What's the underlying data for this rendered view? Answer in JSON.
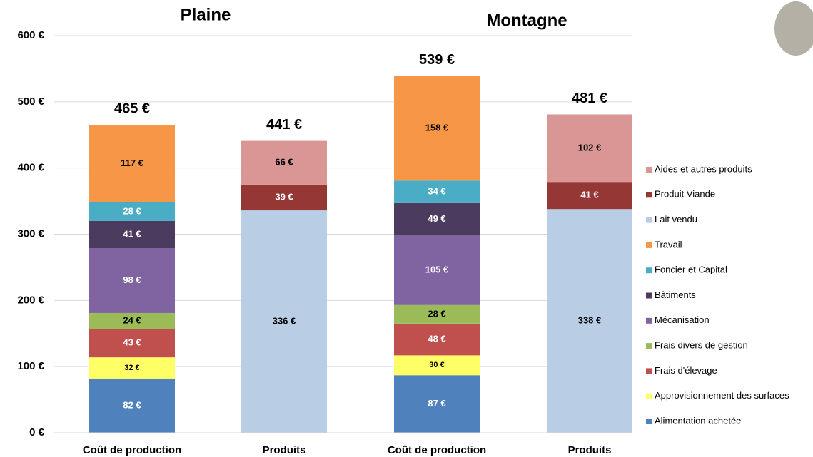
{
  "chart_data": {
    "type": "stacked-bar",
    "groups": [
      "Plaine",
      "Montagne"
    ],
    "categories": [
      "Coût de production",
      "Produits",
      "Coût de production",
      "Produits"
    ],
    "totals": [
      465,
      441,
      539,
      481
    ],
    "total_labels": [
      "465 €",
      "441 €",
      "539 €",
      "481 €"
    ],
    "ylim": [
      0,
      600
    ],
    "yticks": [
      {
        "value": 0,
        "label": "0 €"
      },
      {
        "value": 100,
        "label": "100 €"
      },
      {
        "value": 200,
        "label": "200 €"
      },
      {
        "value": 300,
        "label": "300 €"
      },
      {
        "value": 400,
        "label": "400 €"
      },
      {
        "value": 500,
        "label": "500 €"
      },
      {
        "value": 600,
        "label": "600 €"
      }
    ],
    "grid": true,
    "legend": "right",
    "series": [
      {
        "name": "Alimentation achetée",
        "color": "#4f81bd",
        "values": [
          82,
          null,
          87,
          null
        ],
        "value_labels": [
          "82 €",
          null,
          "87 €",
          null
        ]
      },
      {
        "name": "Approvisionnement des surfaces",
        "color": "#ffff66",
        "values": [
          32,
          null,
          30,
          null
        ],
        "value_labels": [
          "32 €",
          null,
          "30 €",
          null
        ]
      },
      {
        "name": "Frais d'élevage",
        "color": "#c0504d",
        "values": [
          43,
          null,
          48,
          null
        ],
        "value_labels": [
          "43 €",
          null,
          "48 €",
          null
        ]
      },
      {
        "name": "Frais divers de gestion",
        "color": "#9bbb59",
        "values": [
          24,
          null,
          28,
          null
        ],
        "value_labels": [
          "24 €",
          null,
          "28 €",
          null
        ]
      },
      {
        "name": "Mécanisation",
        "color": "#8064a2",
        "values": [
          98,
          null,
          105,
          null
        ],
        "value_labels": [
          "98 €",
          null,
          "105 €",
          null
        ]
      },
      {
        "name": "Bâtiments",
        "color": "#4b3b5e",
        "values": [
          41,
          null,
          49,
          null
        ],
        "value_labels": [
          "41 €",
          null,
          "49 €",
          null
        ]
      },
      {
        "name": "Foncier et Capital",
        "color": "#4bacc6",
        "values": [
          28,
          null,
          34,
          null
        ],
        "value_labels": [
          "28 €",
          null,
          "34 €",
          null
        ]
      },
      {
        "name": "Travail",
        "color": "#f79646",
        "values": [
          117,
          null,
          158,
          null
        ],
        "value_labels": [
          "117 €",
          null,
          "158 €",
          null
        ]
      },
      {
        "name": "Lait vendu",
        "color": "#b9cde5",
        "values": [
          null,
          336,
          null,
          338
        ],
        "value_labels": [
          null,
          "336 €",
          null,
          "338 €"
        ]
      },
      {
        "name": "Produit Viande",
        "color": "#953735",
        "values": [
          null,
          39,
          null,
          41
        ],
        "value_labels": [
          null,
          "39 €",
          null,
          "41 €"
        ]
      },
      {
        "name": "Aides et autres produits",
        "color": "#d99694",
        "values": [
          null,
          66,
          null,
          102
        ],
        "value_labels": [
          null,
          "66 €",
          null,
          "102 €"
        ]
      }
    ]
  }
}
